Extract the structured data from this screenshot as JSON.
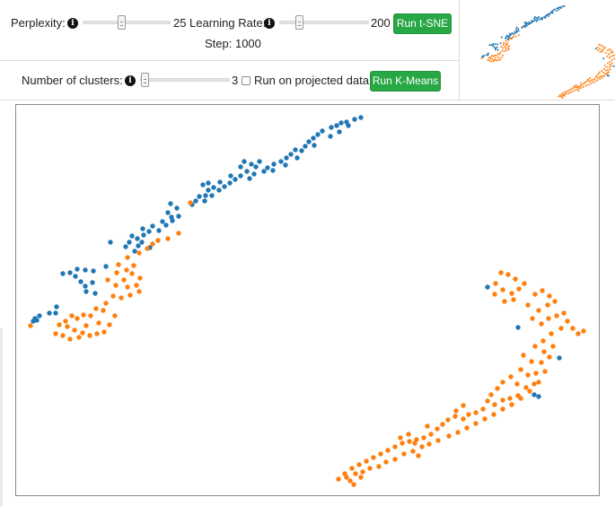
{
  "tsne": {
    "perplexity_label": "Perplexity:",
    "perplexity_value": "25",
    "perplexity_fraction": 0.44,
    "learning_rate_label": "Learning Rate:",
    "learning_rate_value": "200",
    "learning_rate_fraction": 0.22,
    "run_button": "Run t-SNE",
    "step_text": "Step: 1000"
  },
  "kmeans": {
    "clusters_label": "Number of clusters:",
    "clusters_value": "3",
    "clusters_fraction": 0.05,
    "projected_label": "Run on projected data",
    "projected_checked": false,
    "run_button": "Run K-Means"
  },
  "icons": {
    "info": "info-icon",
    "slider_thumb": "slider-thumb-icon",
    "checkbox": "checkbox-icon"
  },
  "colors": {
    "cluster_a": "#1f77b4",
    "cluster_b": "#ff7f0e",
    "button": "#28a745"
  },
  "chart_data": {
    "type": "scatter",
    "series": [
      {
        "color": "#1f77b4",
        "points": [
          [
            395,
            133
          ],
          [
            386,
            136
          ],
          [
            380,
            137
          ],
          [
            388,
            140
          ],
          [
            402,
            131
          ],
          [
            375,
            140
          ],
          [
            369,
            142
          ],
          [
            378,
            147
          ],
          [
            368,
            152
          ],
          [
            359,
            146
          ],
          [
            354,
            150
          ],
          [
            349,
            154
          ],
          [
            344,
            158
          ],
          [
            350,
            162
          ],
          [
            340,
            163
          ],
          [
            336,
            168
          ],
          [
            329,
            167
          ],
          [
            324,
            172
          ],
          [
            331,
            176
          ],
          [
            319,
            176
          ],
          [
            313,
            180
          ],
          [
            318,
            184
          ],
          [
            305,
            183
          ],
          [
            298,
            187
          ],
          [
            304,
            190
          ],
          [
            294,
            191
          ],
          [
            285,
            186
          ],
          [
            289,
            180
          ],
          [
            280,
            183
          ],
          [
            272,
            180
          ],
          [
            268,
            186
          ],
          [
            275,
            191
          ],
          [
            283,
            194
          ],
          [
            278,
            199
          ],
          [
            268,
            196
          ],
          [
            262,
            200
          ],
          [
            257,
            196
          ],
          [
            256,
            204
          ],
          [
            250,
            208
          ],
          [
            245,
            203
          ],
          [
            244,
            212
          ],
          [
            238,
            209
          ],
          [
            232,
            212
          ],
          [
            236,
            218
          ],
          [
            229,
            218
          ],
          [
            222,
            219
          ],
          [
            228,
            224
          ],
          [
            218,
            224
          ],
          [
            214,
            228
          ],
          [
            232,
            204
          ],
          [
            226,
            206
          ],
          [
            190,
            227
          ],
          [
            197,
            232
          ],
          [
            187,
            237
          ],
          [
            191,
            242
          ],
          [
            181,
            247
          ],
          [
            185,
            251
          ],
          [
            177,
            257
          ],
          [
            170,
            252
          ],
          [
            166,
            258
          ],
          [
            159,
            255
          ],
          [
            160,
            262
          ],
          [
            153,
            266
          ],
          [
            147,
            263
          ],
          [
            144,
            270
          ],
          [
            140,
            275
          ],
          [
            154,
            274
          ],
          [
            123,
            270
          ],
          [
            199,
            241
          ],
          [
            192,
            246
          ],
          [
            150,
            280
          ],
          [
            118,
            297
          ],
          [
            104,
            302
          ],
          [
            95,
            301
          ],
          [
            86,
            300
          ],
          [
            84,
            308
          ],
          [
            78,
            304
          ],
          [
            70,
            305
          ],
          [
            90,
            314
          ],
          [
            95,
            319
          ],
          [
            103,
            315
          ],
          [
            96,
            325
          ],
          [
            106,
            327
          ],
          [
            62,
            349
          ],
          [
            55,
            349
          ],
          [
            44,
            352
          ],
          [
            41,
            357
          ],
          [
            39,
            355
          ],
          [
            37,
            358
          ],
          [
            63,
            342
          ],
          [
            543,
            320
          ],
          [
            577,
            365
          ],
          [
            595,
            440
          ],
          [
            600,
            442
          ],
          [
            623,
            399
          ],
          [
            158,
            270
          ],
          [
            167,
            276
          ]
        ]
      },
      {
        "color": "#ff7f0e",
        "points": [
          [
            212,
            226
          ],
          [
            199,
            260
          ],
          [
            187,
            266
          ],
          [
            176,
            268
          ],
          [
            170,
            272
          ],
          [
            164,
            277
          ],
          [
            155,
            282
          ],
          [
            142,
            287
          ],
          [
            132,
            295
          ],
          [
            130,
            304
          ],
          [
            141,
            301
          ],
          [
            147,
            305
          ],
          [
            138,
            312
          ],
          [
            156,
            310
          ],
          [
            152,
            318
          ],
          [
            155,
            325
          ],
          [
            145,
            329
          ],
          [
            135,
            332
          ],
          [
            126,
            330
          ],
          [
            118,
            338
          ],
          [
            115,
            346
          ],
          [
            107,
            344
          ],
          [
            101,
            352
          ],
          [
            93,
            351
          ],
          [
            86,
            355
          ],
          [
            80,
            352
          ],
          [
            73,
            358
          ],
          [
            66,
            362
          ],
          [
            75,
            364
          ],
          [
            83,
            368
          ],
          [
            92,
            371
          ],
          [
            100,
            374
          ],
          [
            108,
            372
          ],
          [
            116,
            370
          ],
          [
            122,
            362
          ],
          [
            128,
            352
          ],
          [
            110,
            360
          ],
          [
            96,
            363
          ],
          [
            88,
            376
          ],
          [
            78,
            378
          ],
          [
            70,
            374
          ],
          [
            62,
            372
          ],
          [
            34,
            363
          ],
          [
            120,
            312
          ],
          [
            129,
            318
          ],
          [
            149,
            296
          ],
          [
            142,
            320
          ],
          [
            558,
            304
          ],
          [
            566,
            306
          ],
          [
            574,
            311
          ],
          [
            552,
            316
          ],
          [
            560,
            323
          ],
          [
            570,
            327
          ],
          [
            578,
            322
          ],
          [
            584,
            316
          ],
          [
            551,
            328
          ],
          [
            562,
            336
          ],
          [
            572,
            334
          ],
          [
            588,
            340
          ],
          [
            596,
            328
          ],
          [
            604,
            324
          ],
          [
            612,
            330
          ],
          [
            618,
            336
          ],
          [
            610,
            340
          ],
          [
            600,
            346
          ],
          [
            593,
            355
          ],
          [
            603,
            361
          ],
          [
            611,
            355
          ],
          [
            620,
            352
          ],
          [
            628,
            349
          ],
          [
            632,
            358
          ],
          [
            625,
            366
          ],
          [
            638,
            366
          ],
          [
            644,
            372
          ],
          [
            650,
            369
          ],
          [
            614,
            372
          ],
          [
            605,
            380
          ],
          [
            596,
            386
          ],
          [
            606,
            392
          ],
          [
            616,
            386
          ],
          [
            612,
            398
          ],
          [
            603,
            404
          ],
          [
            592,
            403
          ],
          [
            583,
            396
          ],
          [
            580,
            412
          ],
          [
            588,
            418
          ],
          [
            597,
            416
          ],
          [
            607,
            414
          ],
          [
            595,
            428
          ],
          [
            586,
            432
          ],
          [
            576,
            428
          ],
          [
            569,
            420
          ],
          [
            560,
            426
          ],
          [
            554,
            433
          ],
          [
            547,
            440
          ],
          [
            543,
            447
          ],
          [
            551,
            451
          ],
          [
            560,
            446
          ],
          [
            568,
            444
          ],
          [
            577,
            441
          ],
          [
            538,
            456
          ],
          [
            530,
            460
          ],
          [
            522,
            462
          ],
          [
            516,
            467
          ],
          [
            507,
            464
          ],
          [
            499,
            468
          ],
          [
            493,
            473
          ],
          [
            487,
            478
          ],
          [
            480,
            484
          ],
          [
            472,
            488
          ],
          [
            464,
            490
          ],
          [
            456,
            492
          ],
          [
            448,
            494
          ],
          [
            440,
            498
          ],
          [
            432,
            502
          ],
          [
            424,
            506
          ],
          [
            416,
            510
          ],
          [
            408,
            514
          ],
          [
            400,
            518
          ],
          [
            392,
            522
          ],
          [
            384,
            528
          ],
          [
            377,
            534
          ],
          [
            386,
            532
          ],
          [
            396,
            528
          ],
          [
            404,
            526
          ],
          [
            412,
            522
          ],
          [
            422,
            520
          ],
          [
            430,
            515
          ],
          [
            440,
            512
          ],
          [
            450,
            506
          ],
          [
            460,
            503
          ],
          [
            470,
            498
          ],
          [
            478,
            495
          ],
          [
            488,
            491
          ],
          [
            500,
            486
          ],
          [
            510,
            482
          ],
          [
            520,
            477
          ],
          [
            530,
            472
          ],
          [
            540,
            467
          ],
          [
            550,
            462
          ],
          [
            560,
            456
          ],
          [
            570,
            451
          ],
          [
            580,
            444
          ],
          [
            590,
            436
          ],
          [
            600,
            426
          ],
          [
            390,
            536
          ],
          [
            394,
            540
          ],
          [
            402,
            532
          ],
          [
            446,
            488
          ],
          [
            455,
            484
          ],
          [
            462,
            494
          ],
          [
            466,
            508
          ],
          [
            476,
            475
          ],
          [
            508,
            458
          ],
          [
            516,
            452
          ]
        ]
      }
    ]
  }
}
